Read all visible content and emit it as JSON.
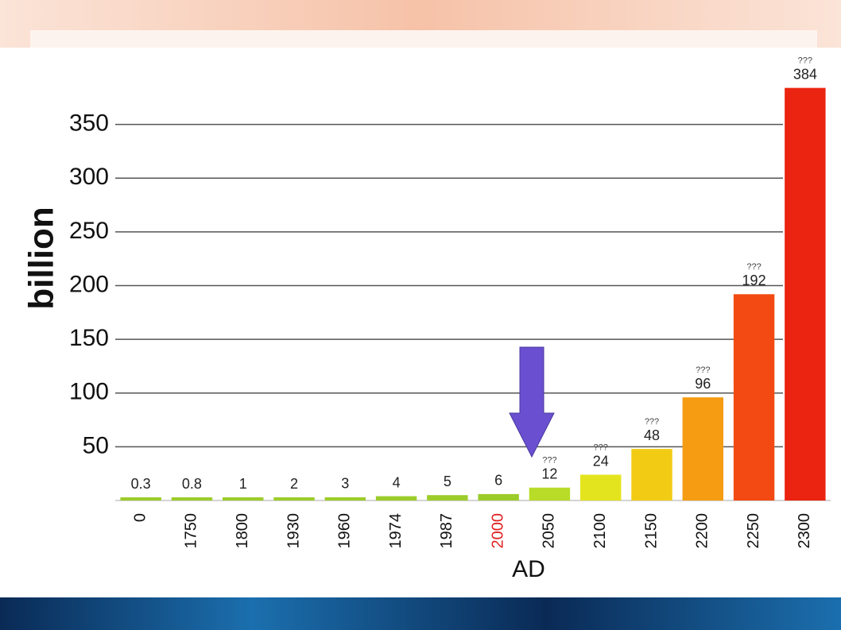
{
  "chart_data": {
    "type": "bar",
    "ylabel": "billion",
    "xlabel": "AD",
    "categories": [
      "0",
      "1750",
      "1800",
      "1930",
      "1960",
      "1974",
      "1987",
      "2000",
      "2050",
      "2100",
      "2150",
      "2200",
      "2250",
      "2300"
    ],
    "values": [
      0.3,
      0.8,
      1,
      2,
      3,
      4,
      5,
      6,
      12,
      24,
      48,
      96,
      192,
      384
    ],
    "value_notes": [
      null,
      null,
      null,
      null,
      null,
      null,
      null,
      null,
      "???",
      "???",
      "???",
      "???",
      "???",
      "???"
    ],
    "colors": [
      "#9ccc2a",
      "#9ccc2a",
      "#9ccc2a",
      "#9ccc2a",
      "#9ccc2a",
      "#9ccc2a",
      "#9ccc2a",
      "#9ccc2a",
      "#b8dc28",
      "#e4e41e",
      "#f2cc14",
      "#f59c12",
      "#f24a12",
      "#ea2410"
    ],
    "tick_label_colors": [
      "#111111",
      "#111111",
      "#111111",
      "#111111",
      "#111111",
      "#111111",
      "#111111",
      "#e02020",
      "#111111",
      "#111111",
      "#111111",
      "#111111",
      "#111111",
      "#111111"
    ],
    "ylim": [
      0,
      400
    ],
    "yticks": [
      50,
      100,
      150,
      200,
      250,
      300,
      350
    ],
    "grid": true
  }
}
